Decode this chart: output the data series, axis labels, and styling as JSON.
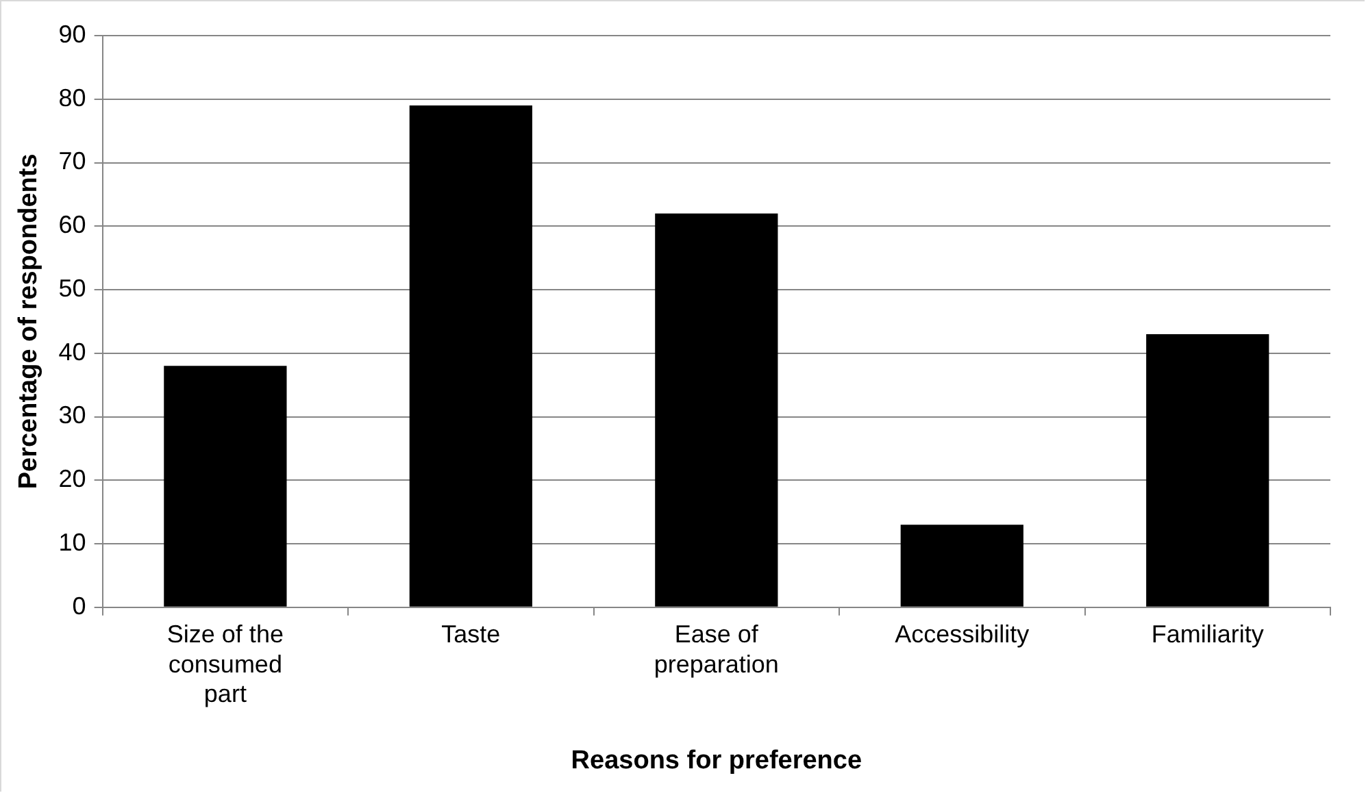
{
  "chart_data": {
    "type": "bar",
    "xlabel": "Reasons for preference",
    "ylabel": "Percentage of respondents",
    "categories": [
      "Size of the consumed part",
      "Taste",
      "Ease of preparation",
      "Accessibility",
      "Familiarity"
    ],
    "values": [
      38,
      79,
      62,
      13,
      43
    ],
    "color": "#000000",
    "ylim": [
      0,
      90
    ],
    "yticks": [
      0,
      10,
      20,
      30,
      40,
      50,
      60,
      70,
      80,
      90
    ],
    "grid": "y",
    "legend": false
  }
}
